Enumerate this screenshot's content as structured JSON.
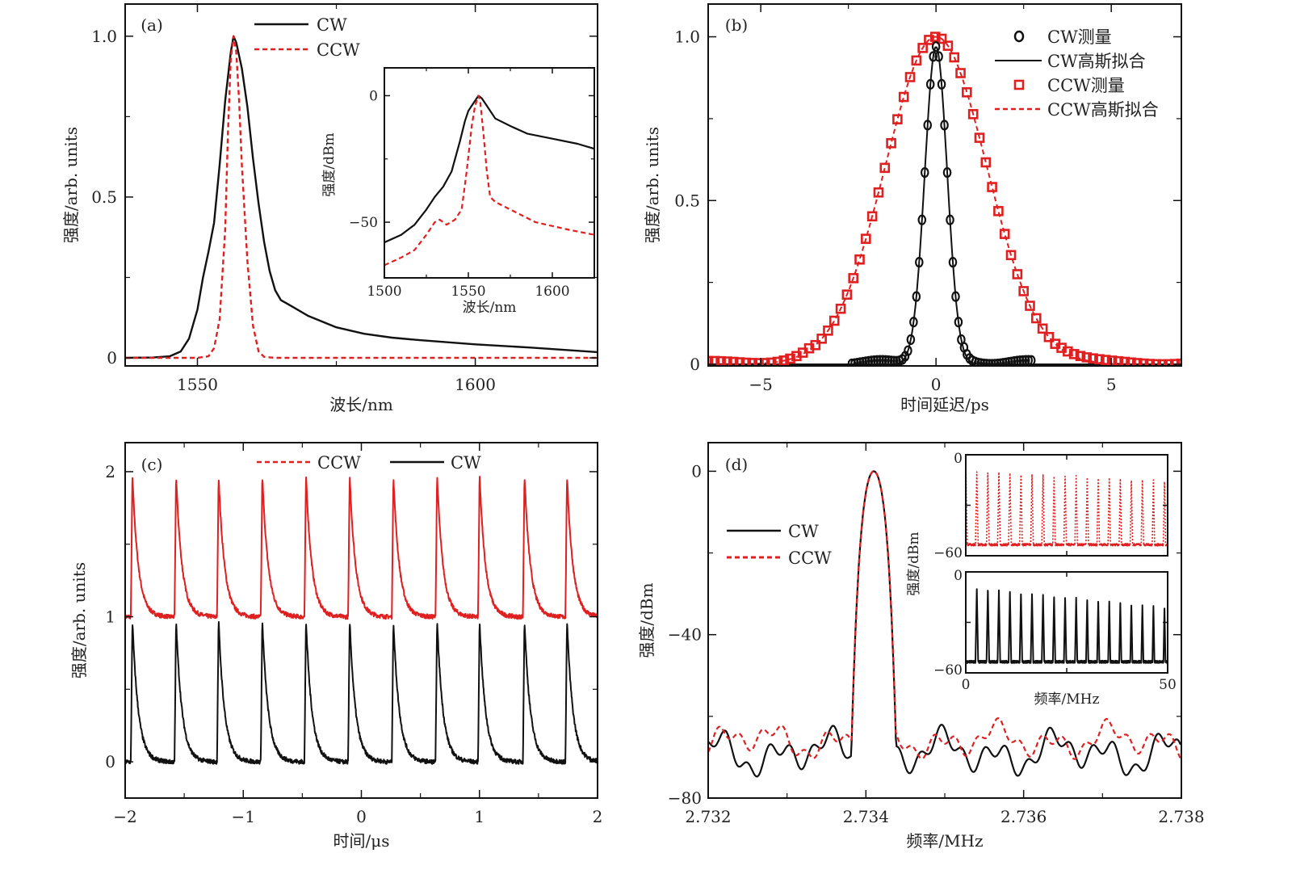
{
  "colors": {
    "cw": "#111111",
    "ccw": "#e02020",
    "axis": "#111111"
  },
  "chart_data": [
    {
      "id": "a",
      "type": "line",
      "panel_label": "(a)",
      "xlabel": "波长/nm",
      "ylabel": "强度/arb. units",
      "xlim": [
        1537,
        1622
      ],
      "ylim": [
        -0.025,
        1.1
      ],
      "xticks": [
        1550,
        1600
      ],
      "xtick_labels": [
        "1550",
        "1600"
      ],
      "yticks": [
        0,
        0.5,
        1.0
      ],
      "ytick_labels": [
        "0",
        "0.5",
        "1.0"
      ],
      "legend": {
        "placement": "top-center",
        "entries": [
          {
            "name": "CW",
            "style": "solid"
          },
          {
            "name": "CCW",
            "style": "dashed"
          }
        ]
      },
      "series": [
        {
          "name": "CW",
          "style": "solid",
          "color": "#111111",
          "x": [
            1537,
            1542,
            1545,
            1547,
            1548.5,
            1550,
            1551,
            1552,
            1553,
            1554,
            1555,
            1556,
            1556.5,
            1557,
            1558,
            1559,
            1560,
            1561,
            1562,
            1563,
            1564,
            1565,
            1567,
            1570,
            1575,
            1580,
            1585,
            1590,
            1600,
            1610,
            1622
          ],
          "y": [
            0,
            0.001,
            0.005,
            0.02,
            0.06,
            0.15,
            0.25,
            0.33,
            0.42,
            0.6,
            0.8,
            0.95,
            1.0,
            0.98,
            0.9,
            0.78,
            0.62,
            0.48,
            0.36,
            0.27,
            0.21,
            0.18,
            0.16,
            0.13,
            0.095,
            0.075,
            0.063,
            0.055,
            0.042,
            0.032,
            0.018
          ]
        },
        {
          "name": "CCW",
          "style": "dashed",
          "color": "#e02020",
          "x": [
            1537,
            1550,
            1552,
            1553,
            1554,
            1555,
            1555.5,
            1556,
            1556.5,
            1557,
            1557.5,
            1558,
            1559,
            1560,
            1561,
            1562,
            1564,
            1622
          ],
          "y": [
            0,
            0,
            0.005,
            0.03,
            0.12,
            0.4,
            0.7,
            0.93,
            1.0,
            0.95,
            0.8,
            0.6,
            0.3,
            0.1,
            0.02,
            0.003,
            0,
            0
          ]
        }
      ],
      "inset": {
        "type": "line",
        "xlabel": "波长/nm",
        "ylabel": "强度/dBm",
        "xlim": [
          1500,
          1625
        ],
        "ylim": [
          -72,
          11
        ],
        "xticks": [
          1500,
          1550,
          1600
        ],
        "xtick_labels": [
          "1500",
          "1550",
          "1600"
        ],
        "yticks": [
          0,
          -50
        ],
        "ytick_labels": [
          "0",
          "−50"
        ],
        "series": [
          {
            "name": "CW",
            "style": "solid",
            "color": "#111111",
            "x": [
              1500,
              1510,
              1518,
              1525,
              1530,
              1535,
              1540,
              1545,
              1548,
              1550,
              1553,
              1556,
              1558,
              1562,
              1566,
              1575,
              1585,
              1600,
              1615,
              1625
            ],
            "y": [
              -58,
              -55,
              -51,
              -45,
              -40,
              -36,
              -30,
              -18,
              -10,
              -6,
              -3,
              0,
              -1,
              -5,
              -9,
              -12,
              -15,
              -17,
              -19,
              -21
            ]
          },
          {
            "name": "CCW",
            "style": "dashed",
            "color": "#e02020",
            "x": [
              1500,
              1510,
              1518,
              1525,
              1530,
              1533,
              1537,
              1542,
              1546,
              1549,
              1552,
              1554,
              1556,
              1557,
              1559,
              1561,
              1563,
              1566,
              1575,
              1590,
              1610,
              1625
            ],
            "y": [
              -67,
              -64,
              -61,
              -55,
              -50,
              -49,
              -51,
              -49,
              -45,
              -30,
              -12,
              -4,
              0,
              -2,
              -15,
              -30,
              -40,
              -42,
              -45,
              -50,
              -53,
              -55
            ]
          }
        ]
      }
    },
    {
      "id": "b",
      "type": "scatter",
      "panel_label": "(b)",
      "xlabel": "时间延迟/ps",
      "ylabel": "强度/arb. units",
      "xlim": [
        -6.5,
        7
      ],
      "ylim": [
        -0.005,
        1.1
      ],
      "xticks": [
        -5,
        0,
        5
      ],
      "xtick_labels": [
        "−5",
        "0",
        "5"
      ],
      "yticks": [
        0,
        0.5,
        1.0
      ],
      "ytick_labels": [
        "0",
        "0.5",
        "1.0"
      ],
      "legend": {
        "placement": "top-right",
        "entries": [
          {
            "name": "CW测量",
            "style": "circle"
          },
          {
            "name": "CW高斯拟合",
            "style": "solid"
          },
          {
            "name": "CCW测量",
            "style": "square"
          },
          {
            "name": "CCW高斯拟合",
            "style": "dashed"
          }
        ]
      },
      "series": [
        {
          "name": "CW测量",
          "marker": "circle",
          "color": "#111111",
          "gaussian": {
            "amplitude": 0.97,
            "center": 0.0,
            "fwhm": 0.75
          },
          "x_range": [
            -2.4,
            2.8
          ],
          "step": 0.08,
          "baseline_ripple": 0.012
        },
        {
          "name": "CW高斯拟合",
          "style": "solid",
          "color": "#111111",
          "gaussian": {
            "amplitude": 0.97,
            "center": 0.0,
            "fwhm": 0.75
          }
        },
        {
          "name": "CCW测量",
          "marker": "square",
          "color": "#e02020",
          "gaussian": {
            "amplitude": 1.0,
            "center": 0.0,
            "fwhm": 3.4
          },
          "x_range": [
            -6.5,
            7
          ],
          "step": 0.18,
          "baseline_ripple": 0.01
        },
        {
          "name": "CCW高斯拟合",
          "style": "dashed",
          "color": "#e02020",
          "gaussian": {
            "amplitude": 1.0,
            "center": 0.0,
            "fwhm": 3.4
          }
        }
      ]
    },
    {
      "id": "c",
      "type": "line",
      "panel_label": "(c)",
      "xlabel": "时间/μs",
      "ylabel": "强度/arb. units",
      "xlim": [
        -2,
        2
      ],
      "ylim": [
        -0.25,
        2.2
      ],
      "xticks": [
        -2,
        -1,
        0,
        1,
        2
      ],
      "xtick_labels": [
        "−2",
        "−1",
        "0",
        "1",
        "2"
      ],
      "yticks": [
        0,
        1,
        2
      ],
      "ytick_labels": [
        "0",
        "1",
        "2"
      ],
      "legend": {
        "placement": "top-center",
        "entries": [
          {
            "name": "CCW",
            "style": "dashed"
          },
          {
            "name": "CW",
            "style": "solid"
          }
        ]
      },
      "pulse_train": {
        "pulse_times_us": [
          -1.94,
          -1.57,
          -1.21,
          -0.84,
          -0.47,
          -0.1,
          0.27,
          0.64,
          1.0,
          1.38,
          1.74
        ],
        "period_us": 0.366,
        "decay_us": 0.05
      },
      "series": [
        {
          "name": "CCW",
          "style": "dashed",
          "color": "#e02020",
          "baseline": 1.0,
          "peak": 2.0
        },
        {
          "name": "CW",
          "style": "solid",
          "color": "#111111",
          "baseline": 0.0,
          "peak": 1.0
        }
      ]
    },
    {
      "id": "d",
      "type": "line",
      "panel_label": "(d)",
      "xlabel": "频率/MHz",
      "ylabel": "强度/dBm",
      "xlim": [
        2.732,
        2.738
      ],
      "ylim": [
        -80,
        7
      ],
      "xticks": [
        2.732,
        2.734,
        2.736,
        2.738
      ],
      "xtick_labels": [
        "2.732",
        "2.734",
        "2.736",
        "2.738"
      ],
      "yticks": [
        0,
        -40,
        -80
      ],
      "ytick_labels": [
        "0",
        "−40",
        "−80"
      ],
      "legend": {
        "placement": "upper-left",
        "entries": [
          {
            "name": "CW",
            "style": "solid"
          },
          {
            "name": "CCW",
            "style": "dashed"
          }
        ]
      },
      "central_peak": {
        "center_MHz": 2.7341,
        "peak_dBm": 0,
        "noise_floor_dBm": -67
      },
      "series": [
        {
          "name": "CW",
          "style": "solid",
          "color": "#111111",
          "noise_mean_dBm": -69,
          "noise_span_dBm": 10
        },
        {
          "name": "CCW",
          "style": "dashed",
          "color": "#e02020",
          "noise_mean_dBm": -66,
          "noise_span_dBm": 8
        }
      ],
      "insets": [
        {
          "type": "line",
          "series": "CCW",
          "color": "#e02020",
          "style": "dotted",
          "xlim": [
            0,
            50
          ],
          "ylim": [
            -60,
            0
          ],
          "yticks": [
            0,
            -60
          ],
          "ytick_labels": [
            "0",
            "−60"
          ],
          "harmonic_spacing_MHz": 2.734,
          "first_peak_dBm": -2,
          "peaks_dBm_start": -8,
          "peaks_dBm_end": -14,
          "floor_dBm": -55
        },
        {
          "type": "line",
          "series": "CW",
          "color": "#111111",
          "style": "solid",
          "xlim": [
            0,
            50
          ],
          "ylim": [
            -60,
            0
          ],
          "yticks": [
            0,
            -60
          ],
          "ytick_labels": [
            "0",
            "−60"
          ],
          "xticks": [
            0,
            50
          ],
          "xtick_labels": [
            "0",
            "50"
          ],
          "xlabel": "频率/MHz",
          "ylabel": "强度/dBm",
          "harmonic_spacing_MHz": 2.734,
          "peaks_dBm_start": -8,
          "peaks_dBm_end": -20,
          "floor_dBm": -55
        }
      ]
    }
  ]
}
